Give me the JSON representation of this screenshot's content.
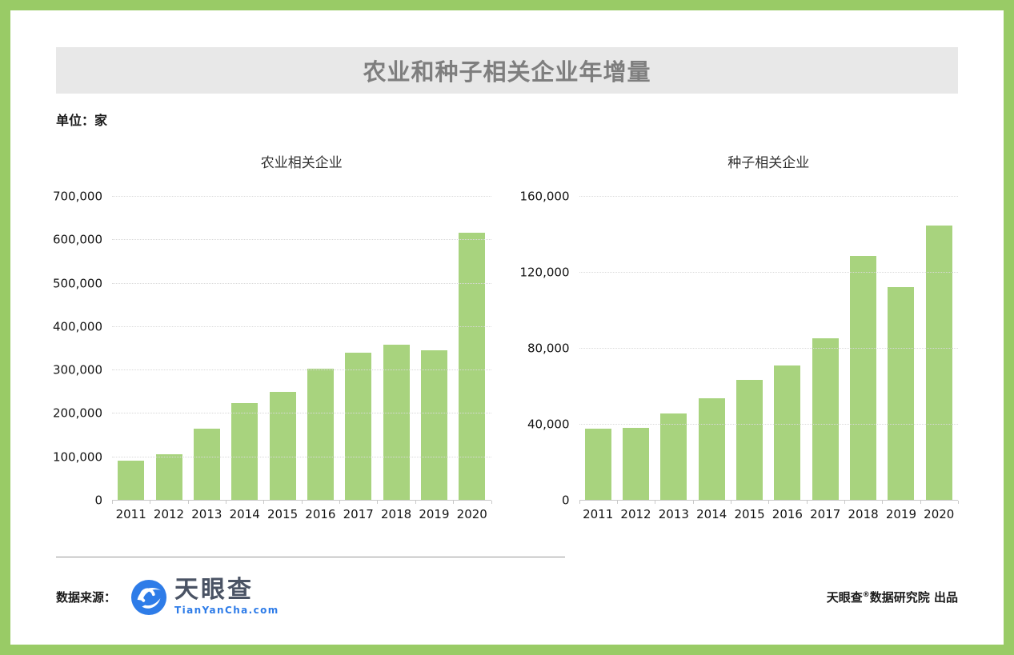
{
  "page": {
    "title": "农业和种子相关企业年增量",
    "unit_label": "单位：家"
  },
  "colors": {
    "frame_border": "#99CB66",
    "bar": "#A8D37E",
    "title_bar_bg": "#E8E8E8",
    "title_text": "#7E7E7E",
    "logo_blue": "#2E7CE8",
    "logo_dark": "#4A5364"
  },
  "chart_data": [
    {
      "type": "bar",
      "title": "农业相关企业",
      "categories": [
        "2011",
        "2012",
        "2013",
        "2014",
        "2015",
        "2016",
        "2017",
        "2018",
        "2019",
        "2020"
      ],
      "values": [
        92000,
        107000,
        165000,
        224000,
        250000,
        304000,
        341000,
        360000,
        347000,
        618000
      ],
      "xlabel": "",
      "ylabel": "",
      "ylim": [
        0,
        700000
      ],
      "ytick_step": 100000,
      "grid": "horizontal-dotted",
      "legend": "none",
      "bar_color": "#A8D37E"
    },
    {
      "type": "bar",
      "title": "种子相关企业",
      "categories": [
        "2011",
        "2012",
        "2013",
        "2014",
        "2015",
        "2016",
        "2017",
        "2018",
        "2019",
        "2020"
      ],
      "values": [
        38000,
        38500,
        46000,
        54000,
        63500,
        71000,
        85500,
        129000,
        112500,
        145000
      ],
      "xlabel": "",
      "ylabel": "",
      "ylim": [
        0,
        160000
      ],
      "ytick_step": 40000,
      "grid": "horizontal-dotted",
      "legend": "none",
      "bar_color": "#A8D37E"
    }
  ],
  "footer": {
    "source_label": "数据来源：",
    "logo_name": "天眼查",
    "logo_domain": "TianYanCha.com",
    "credit_prefix": "天眼查",
    "credit_reg": "®",
    "credit_suffix": "数据研究院 出品"
  }
}
